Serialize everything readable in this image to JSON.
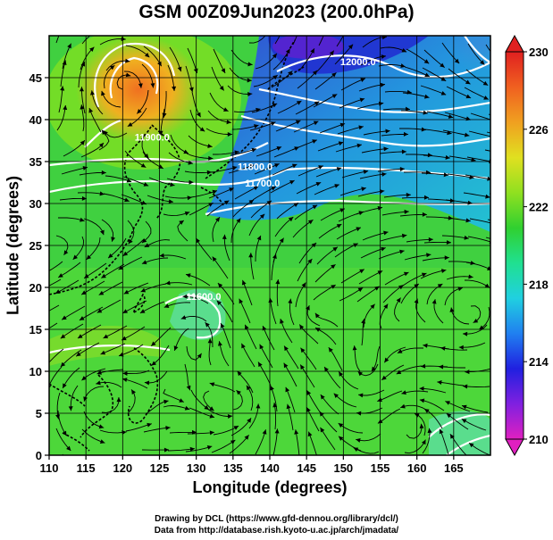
{
  "title": "GSM 00Z09Jun2023 (200.0hPa)",
  "xlabel": "Longitude (degrees)",
  "ylabel": "Latitude  (degrees)",
  "credits": [
    "Drawing by DCL (https://www.gfd-dennou.org/library/dcl/)",
    "Data from http://database.rish.kyoto-u.ac.jp/arch/jmadata/"
  ],
  "map": {
    "lon_range": [
      110,
      170
    ],
    "lat_range": [
      0,
      50
    ],
    "lon_ticks": [
      "110",
      "115",
      "120",
      "125",
      "130",
      "135",
      "140",
      "145",
      "150",
      "155",
      "160",
      "165"
    ],
    "lat_ticks": [
      "0",
      "5",
      "10",
      "15",
      "20",
      "25",
      "30",
      "35",
      "40",
      "45"
    ],
    "colorbar": {
      "range": [
        210,
        230
      ],
      "tick_labels": [
        "210",
        "214",
        "218",
        "222",
        "226",
        "230"
      ],
      "stops": [
        "#e020c0",
        "#8020e0",
        "#2020e0",
        "#2080f0",
        "#20d0e0",
        "#20e090",
        "#30d030",
        "#90e020",
        "#e0e020",
        "#f0a020",
        "#f06020",
        "#e02020"
      ]
    },
    "contour_labels": [
      {
        "text": "12000.0",
        "lon": 152,
        "lat": 46.5
      },
      {
        "text": "11900.0",
        "lon": 124,
        "lat": 37.5
      },
      {
        "text": "11800.0",
        "lon": 138,
        "lat": 34
      },
      {
        "text": "11700.0",
        "lon": 139,
        "lat": 32
      },
      {
        "text": "11600.0",
        "lon": 131,
        "lat": 18.5
      }
    ]
  }
}
